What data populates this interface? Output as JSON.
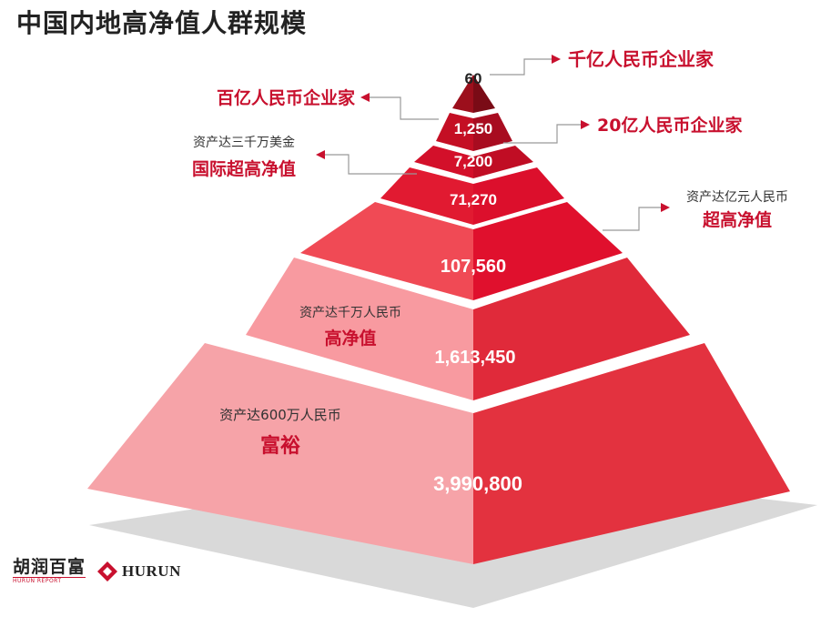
{
  "title": "中国内地高净值人群规模",
  "tiers": [
    {
      "value": "60",
      "label_big": "千亿人民币企业家",
      "label_small": ""
    },
    {
      "value": "1,250",
      "label_big": "百亿人民币企业家",
      "label_small": ""
    },
    {
      "value": "7,200",
      "label_big": "20亿人民币企业家",
      "label_small": ""
    },
    {
      "value": "71,270",
      "label_big": "国际超高净值",
      "label_small": "资产达三千万美金"
    },
    {
      "value": "107,560",
      "label_big": "超高净值",
      "label_small": "资产达亿元人民币"
    },
    {
      "value": "1,613,450",
      "label_big": "高净值",
      "label_small": "资产达千万人民币"
    },
    {
      "value": "3,990,800",
      "label_big": "富裕",
      "label_small": "资产达600万人民币"
    }
  ],
  "colors": {
    "accent": "#c8102e",
    "tier_left": [
      "#9c0f1c",
      "#c40f24",
      "#d3102a",
      "#e11a31",
      "#f04a55",
      "#f89aa0",
      "#f6a3a8"
    ],
    "tier_right": [
      "#7a0b16",
      "#a80c20",
      "#c00d24",
      "#dc0f2c",
      "#e0102d",
      "#e02a3a",
      "#e3323f"
    ],
    "shadow": "#d9d9d9"
  },
  "logo": {
    "cn": "胡润百富",
    "sub": "HURUN REPORT",
    "en": "HURUN"
  }
}
